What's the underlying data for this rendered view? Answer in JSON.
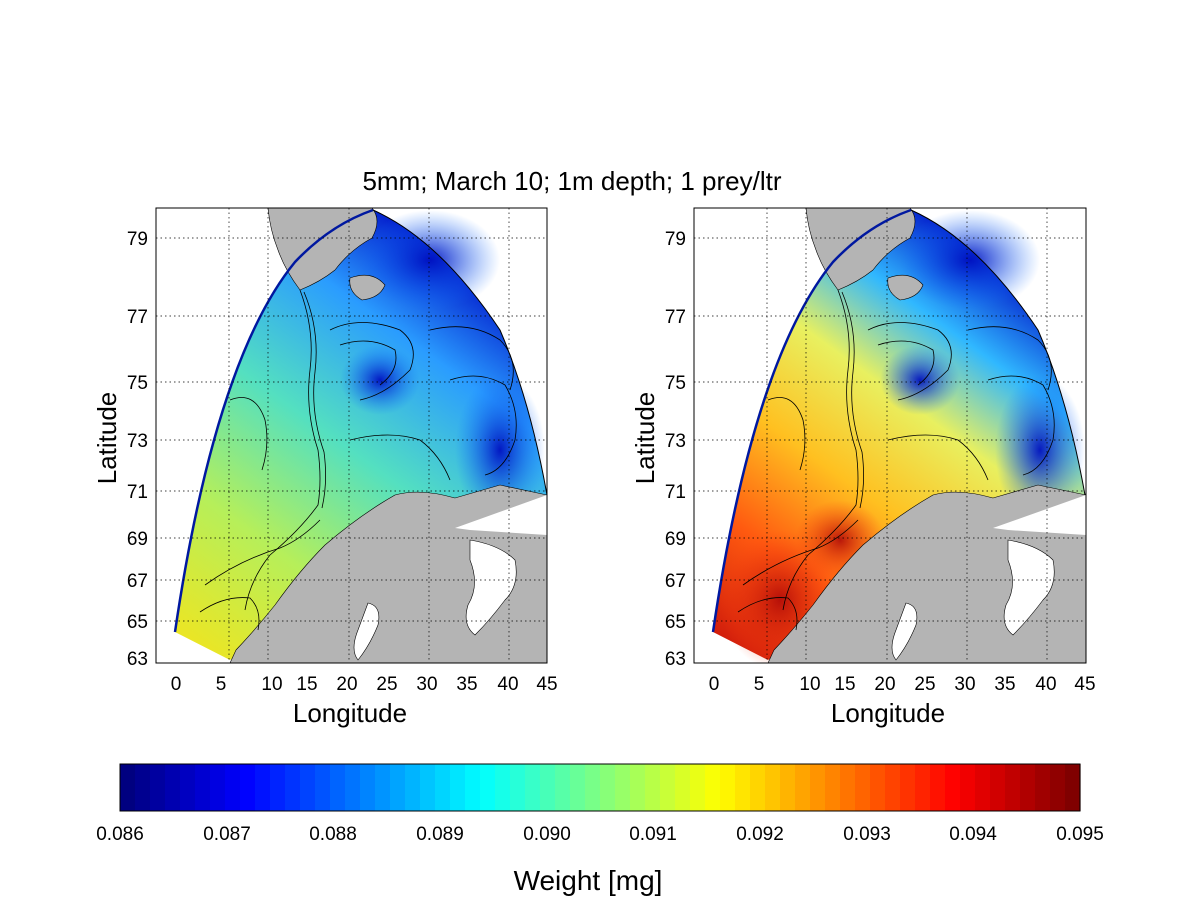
{
  "figure": {
    "title": "5mm; March 10; 1m depth; 1 prey/ltr",
    "colors": {
      "land": "#b4b4b4",
      "background": "#ffffff"
    }
  },
  "maps": [
    {
      "id": "left",
      "xlabel": "Longitude",
      "ylabel": "Latitude",
      "x_ticks": [
        "0",
        "5",
        "10",
        "15",
        "20",
        "25",
        "30",
        "35",
        "40",
        "45"
      ],
      "y_ticks": [
        "79",
        "77",
        "75",
        "73",
        "71",
        "69",
        "67",
        "65",
        "63"
      ],
      "x_tick_values": [
        0,
        5,
        10,
        15,
        20,
        25,
        30,
        35,
        40,
        45
      ],
      "y_tick_values": [
        79,
        77,
        75,
        73,
        71,
        69,
        67,
        65,
        63
      ],
      "dominant_colors": [
        "#d8f23a",
        "#6ee8b0",
        "#2aa8ff",
        "#0000c8"
      ]
    },
    {
      "id": "right",
      "xlabel": "Longitude",
      "ylabel": "Latitude",
      "x_ticks": [
        "0",
        "5",
        "10",
        "15",
        "20",
        "25",
        "30",
        "35",
        "40",
        "45"
      ],
      "y_ticks": [
        "79",
        "77",
        "75",
        "73",
        "71",
        "69",
        "67",
        "65",
        "63"
      ],
      "x_tick_values": [
        0,
        5,
        10,
        15,
        20,
        25,
        30,
        35,
        40,
        45
      ],
      "y_tick_values": [
        79,
        77,
        75,
        73,
        71,
        69,
        67,
        65,
        63
      ],
      "dominant_colors": [
        "#e02010",
        "#ff8800",
        "#ffe020",
        "#0000c8"
      ]
    }
  ],
  "colorbar": {
    "label": "Weight [mg]",
    "min": 0.086,
    "max": 0.095,
    "ticks": [
      "0.086",
      "0.087",
      "0.088",
      "0.089",
      "0.090",
      "0.091",
      "0.092",
      "0.093",
      "0.094",
      "0.095"
    ],
    "colormap": [
      "#000080",
      "#0000ff",
      "#0080ff",
      "#00ffff",
      "#80ff80",
      "#ffff00",
      "#ff8000",
      "#ff0000",
      "#800000"
    ]
  }
}
